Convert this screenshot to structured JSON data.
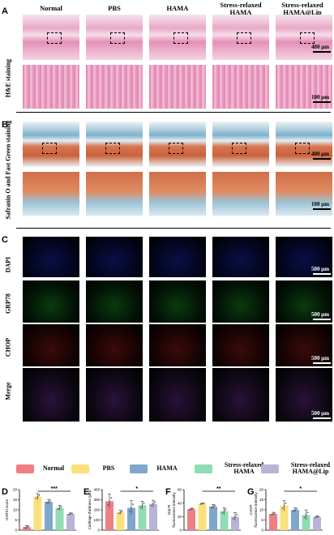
{
  "panels": {
    "A": "A",
    "B": "B",
    "C": "C",
    "D": "D",
    "E": "E",
    "F": "F",
    "G": "G"
  },
  "groups": [
    "Normal",
    "PBS",
    "HAMA",
    "Stress-relaxed HAMA",
    "Stress-relaxed HAMA@Lip"
  ],
  "column_headers": [
    "Normal",
    "PBS",
    "HAMA",
    "Stress-relaxed\nHAMA",
    "Stress-relaxed\nHAMA@Lip"
  ],
  "row_labels": {
    "he": "H&E staining",
    "so": "Safranin O and Fast Green staining",
    "dapi": "DAPI",
    "grp78": "GRP78",
    "chop": "CHOP",
    "merge": "Merge"
  },
  "scale_labels": {
    "um400": "400 μm",
    "um100": "100 μm",
    "um500": "500 μm"
  },
  "colors": {
    "Normal": "#f07f83",
    "PBS": "#fbe07e",
    "HAMA": "#7fa7cb",
    "Stress-relaxed HAMA": "#8fdcb5",
    "Stress-relaxed HAMA@Lip": "#b7b4d8"
  },
  "legend": [
    "Normal",
    "PBS",
    "HAMA",
    "Stress-relaxed\nHAMA",
    "Stress-relaxed\nHAMA@Lip"
  ],
  "chart_data": [
    {
      "panel": "D",
      "type": "bar",
      "ylabel": "OARSI score",
      "categories": [
        "Normal",
        "PBS",
        "HAMA",
        "Stress-relaxed HAMA",
        "Stress-relaxed HAMA@Lip"
      ],
      "values": [
        1.5,
        16.5,
        14,
        11,
        8
      ],
      "errors": [
        0.8,
        1.5,
        1.2,
        1.3,
        0.5
      ],
      "ylim": [
        0,
        20
      ],
      "yticks": [
        0,
        5,
        10,
        15,
        20
      ],
      "significance": {
        "from": 1,
        "to": 4,
        "label": "***"
      }
    },
    {
      "panel": "E",
      "type": "bar",
      "ylabel": "Cartilage thickness (μm)",
      "categories": [
        "Normal",
        "PBS",
        "HAMA",
        "Stress-relaxed HAMA",
        "Stress-relaxed HAMA@Lip"
      ],
      "values": [
        285,
        175,
        220,
        245,
        260
      ],
      "errors": [
        70,
        20,
        70,
        40,
        35
      ],
      "ylim": [
        0,
        400
      ],
      "yticks": [
        0,
        100,
        200,
        300,
        400
      ],
      "significance": {
        "from": 1,
        "to": 4,
        "label": "*"
      }
    },
    {
      "panel": "F",
      "type": "bar",
      "ylabel": "Grp78 fluorescence intensity",
      "categories": [
        "Normal",
        "PBS",
        "HAMA",
        "Stress-relaxed HAMA",
        "Stress-relaxed HAMA@Lip"
      ],
      "values": [
        31,
        39,
        35,
        28,
        20
      ],
      "errors": [
        1.5,
        1,
        3,
        5,
        6
      ],
      "ylim": [
        0,
        60
      ],
      "yticks": [
        0,
        20,
        40,
        60
      ],
      "significance": {
        "from": 1,
        "to": 4,
        "label": "**"
      }
    },
    {
      "panel": "G",
      "type": "bar",
      "ylabel": "CHOP fluorescence intensity",
      "categories": [
        "Normal",
        "PBS",
        "HAMA",
        "Stress-relaxed HAMA",
        "Stress-relaxed HAMA@Lip"
      ],
      "values": [
        8,
        12,
        10,
        7.5,
        6.5
      ],
      "errors": [
        0.8,
        2.5,
        1,
        2.5,
        0.5
      ],
      "ylim": [
        0,
        20
      ],
      "yticks": [
        0,
        5,
        10,
        15,
        20
      ],
      "significance": {
        "from": 1,
        "to": 4,
        "label": "*"
      }
    }
  ]
}
